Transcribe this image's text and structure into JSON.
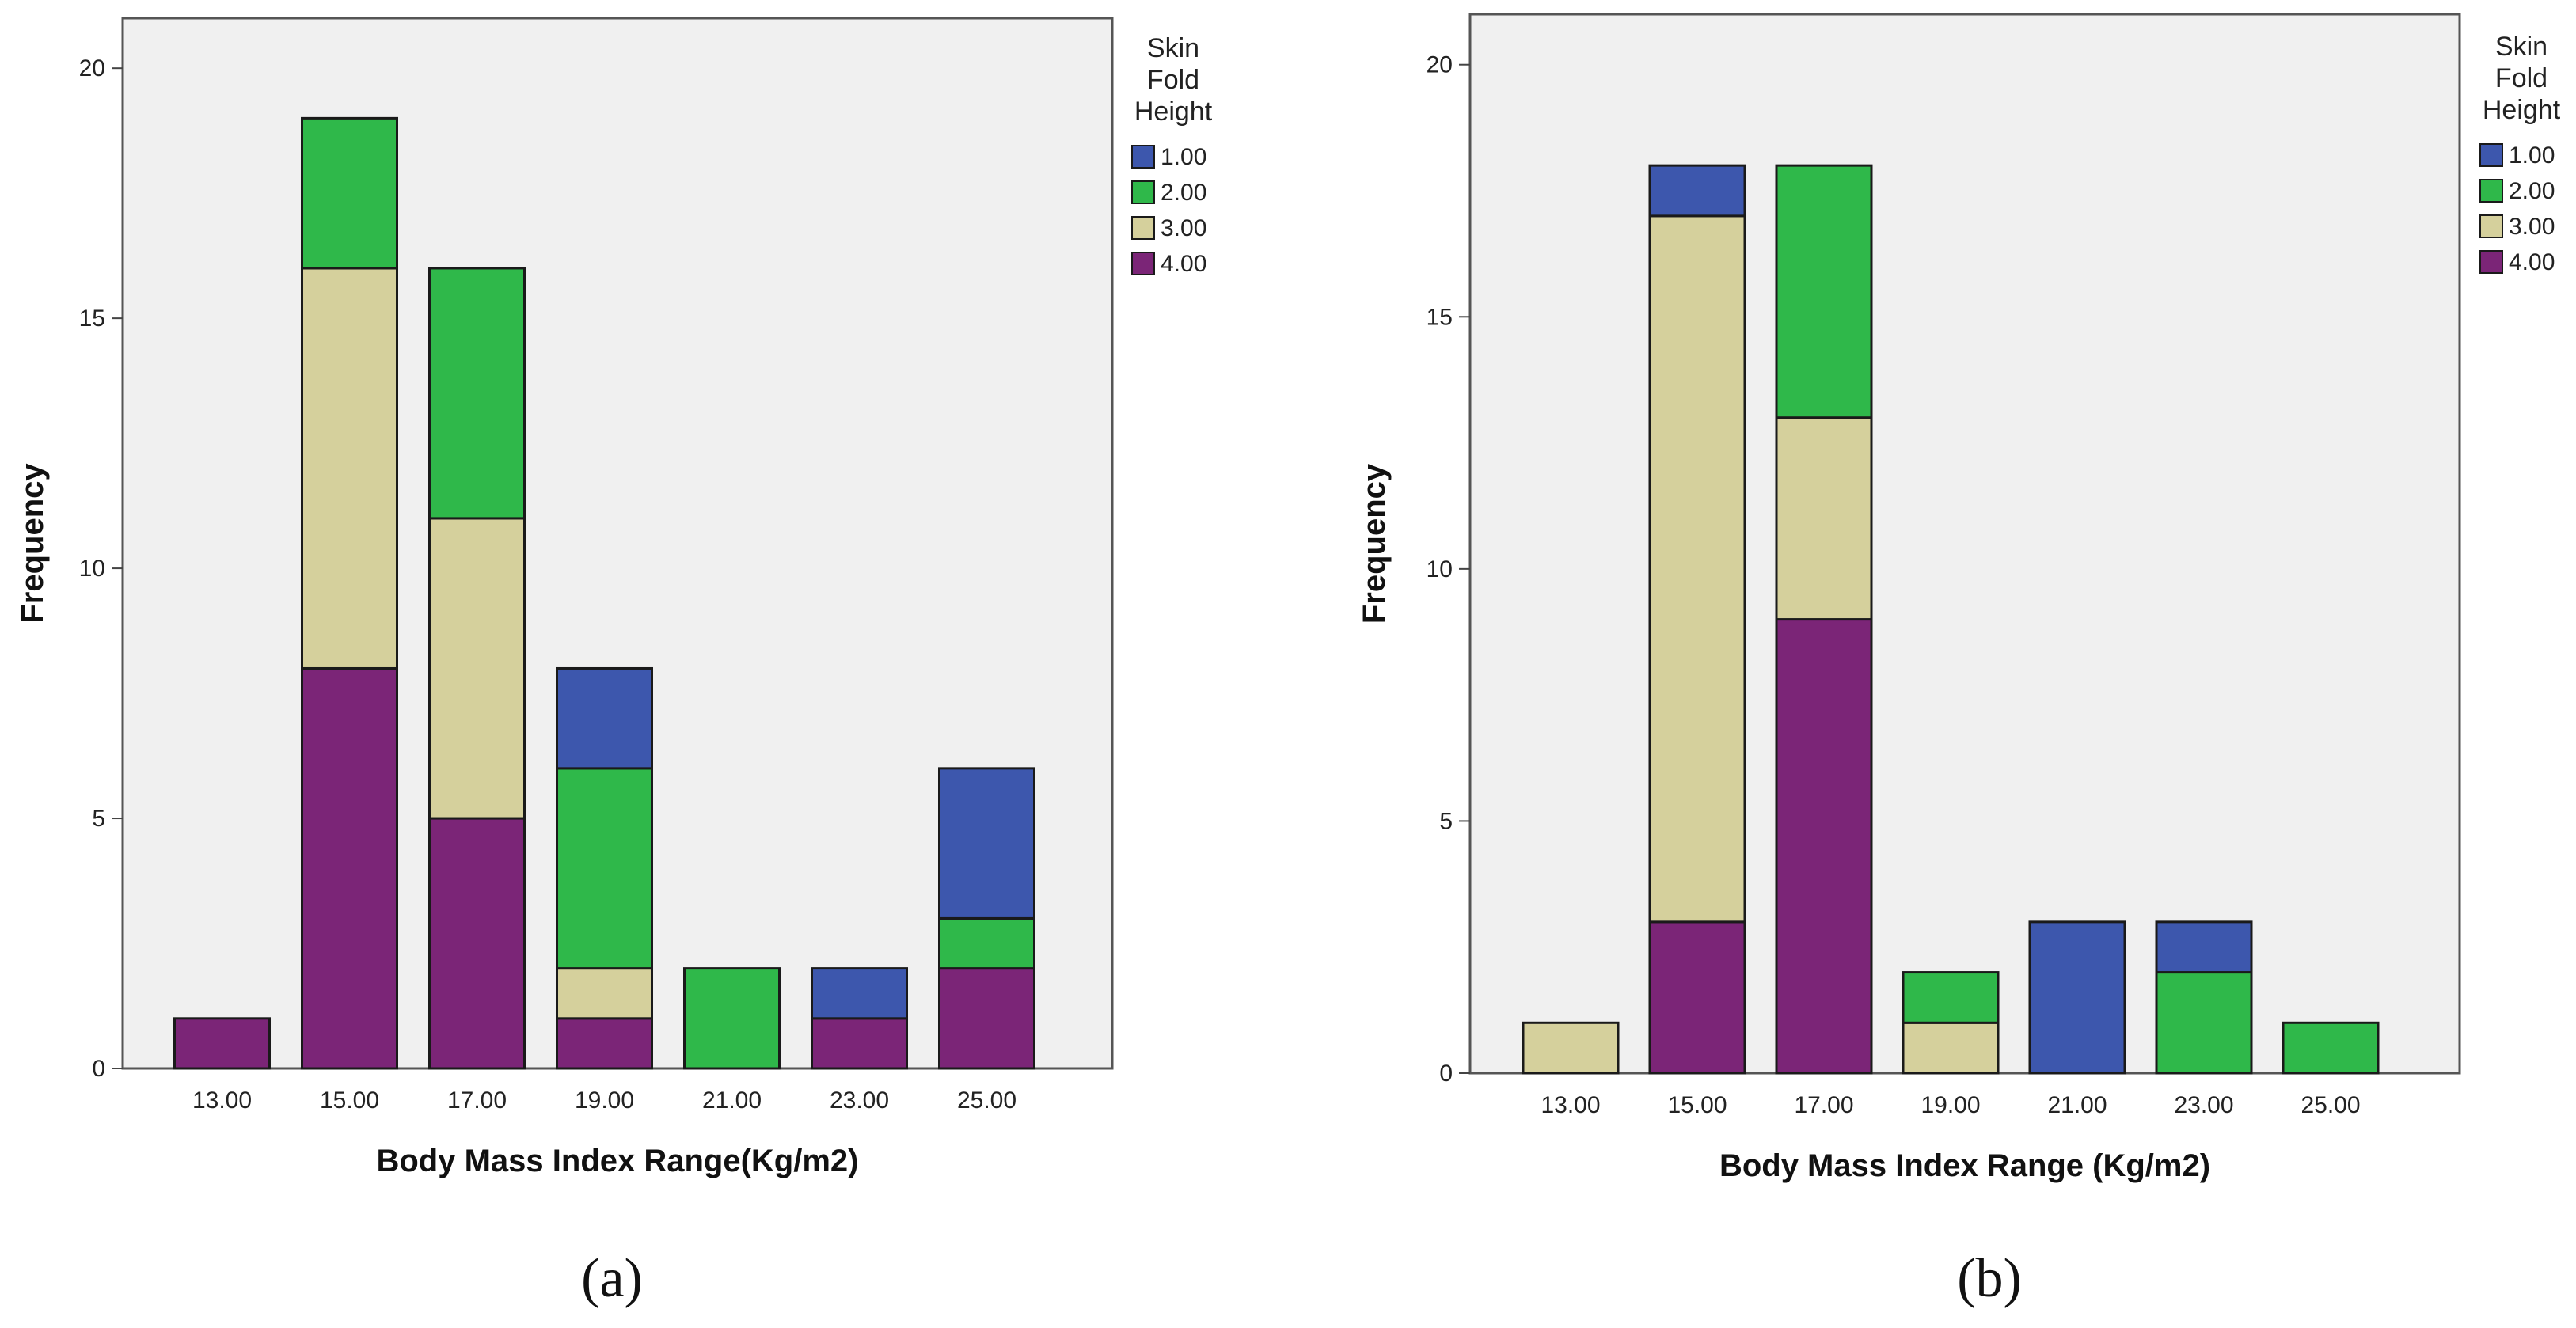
{
  "chart_data": [
    {
      "panel_label": "(a)",
      "type": "bar",
      "stacked": true,
      "title": "",
      "xlabel": "Body Mass Index Range(Kg/m2)",
      "ylabel": "Frequency",
      "ylim": [
        0,
        21
      ],
      "yticks": [
        "0",
        "5",
        "10",
        "15",
        "20"
      ],
      "categories": [
        "13.00",
        "15.00",
        "17.00",
        "19.00",
        "21.00",
        "23.00",
        "25.00"
      ],
      "legend_title": "Skin Fold Height",
      "legend_position": "right",
      "series": [
        {
          "name": "1.00",
          "color": "#3d57ad",
          "values": [
            0,
            0,
            0,
            2,
            0,
            1,
            3
          ]
        },
        {
          "name": "2.00",
          "color": "#2fb84a",
          "values": [
            0,
            3,
            5,
            4,
            2,
            0,
            1
          ]
        },
        {
          "name": "3.00",
          "color": "#d5d09c",
          "values": [
            0,
            8,
            6,
            1,
            0,
            0,
            0
          ]
        },
        {
          "name": "4.00",
          "color": "#7b2577",
          "values": [
            1,
            8,
            5,
            1,
            0,
            1,
            2
          ]
        }
      ]
    },
    {
      "panel_label": "(b)",
      "type": "bar",
      "stacked": true,
      "title": "",
      "xlabel": "Body Mass Index Range (Kg/m2)",
      "ylabel": "Frequency",
      "ylim": [
        0,
        21
      ],
      "yticks": [
        "0",
        "5",
        "10",
        "15",
        "20"
      ],
      "categories": [
        "13.00",
        "15.00",
        "17.00",
        "19.00",
        "21.00",
        "23.00",
        "25.00"
      ],
      "legend_title": "Skin Fold Height",
      "legend_position": "right",
      "series": [
        {
          "name": "1.00",
          "color": "#3d57ad",
          "values": [
            0,
            1,
            0,
            0,
            3,
            1,
            0
          ]
        },
        {
          "name": "2.00",
          "color": "#2fb84a",
          "values": [
            0,
            0,
            5,
            1,
            0,
            2,
            1
          ]
        },
        {
          "name": "3.00",
          "color": "#d5d09c",
          "values": [
            1,
            14,
            4,
            1,
            0,
            0,
            0
          ]
        },
        {
          "name": "4.00",
          "color": "#7b2577",
          "values": [
            0,
            3,
            9,
            0,
            0,
            0,
            0
          ]
        }
      ]
    }
  ]
}
